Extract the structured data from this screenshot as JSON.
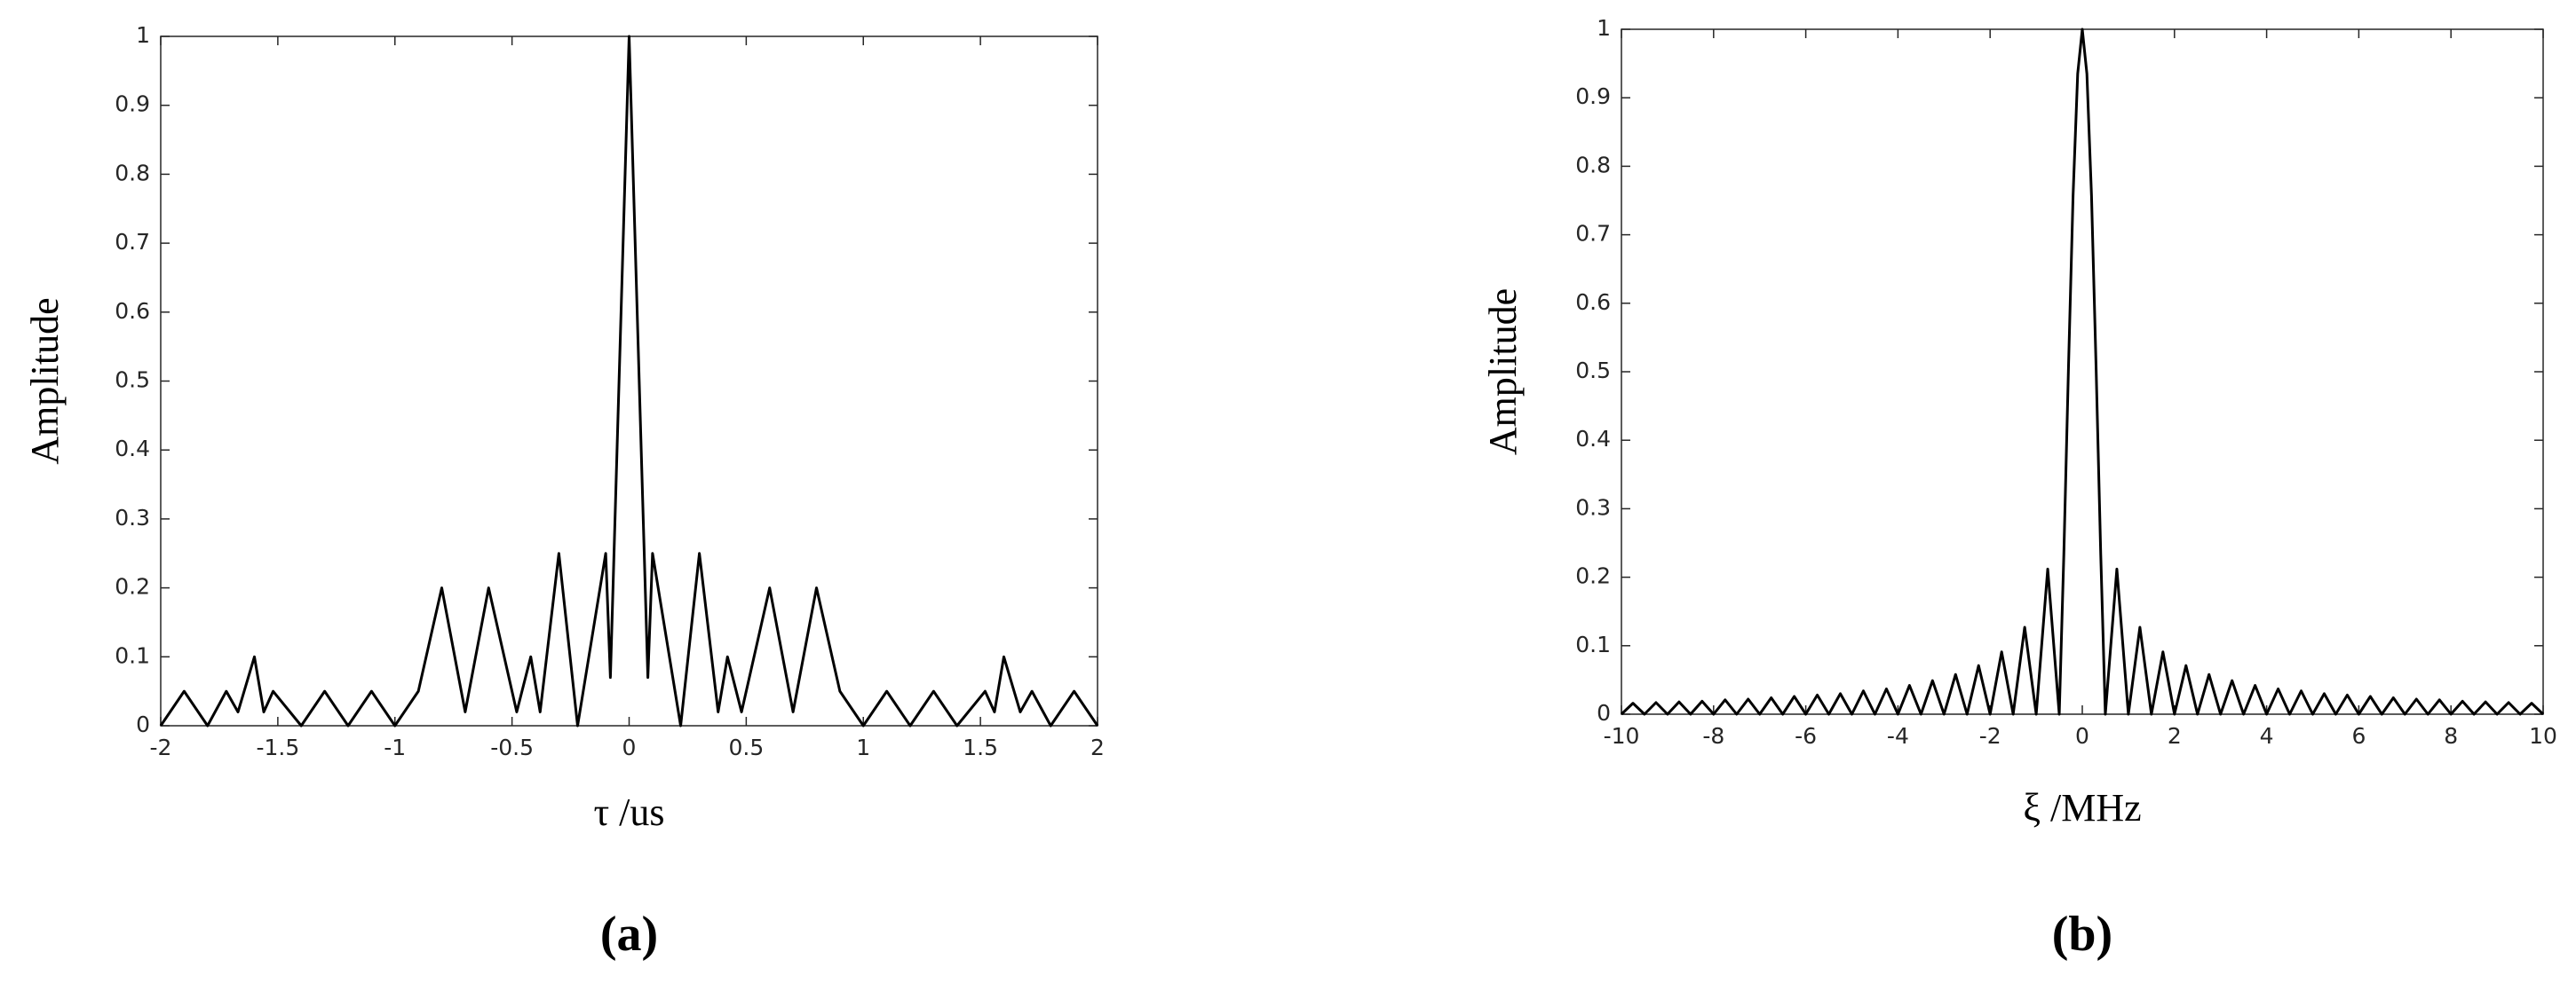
{
  "chart_data": [
    {
      "type": "line",
      "label": "(a)",
      "x_label": "τ /us",
      "y_label": "Amplitude",
      "color": "#000000",
      "xlim": [
        -2,
        2
      ],
      "ylim": [
        0,
        1
      ],
      "xticks": [
        -2,
        -1.5,
        -1,
        -0.5,
        0,
        0.5,
        1,
        1.5,
        2
      ],
      "yticks": [
        0,
        0.1,
        0.2,
        0.3,
        0.4,
        0.5,
        0.6,
        0.7,
        0.8,
        0.9,
        1
      ],
      "x": [
        -2,
        -1.9,
        -1.8,
        -1.72,
        -1.67,
        -1.6,
        -1.56,
        -1.52,
        -1.4,
        -1.3,
        -1.2,
        -1.1,
        -1,
        -0.9,
        -0.8,
        -0.7,
        -0.6,
        -0.48,
        -0.42,
        -0.38,
        -0.3,
        -0.22,
        -0.1,
        -0.08,
        0,
        0.08,
        0.1,
        0.22,
        0.3,
        0.38,
        0.42,
        0.48,
        0.6,
        0.7,
        0.8,
        0.9,
        1,
        1.1,
        1.2,
        1.3,
        1.4,
        1.52,
        1.56,
        1.6,
        1.67,
        1.72,
        1.8,
        1.9,
        2
      ],
      "values": [
        0,
        0.05,
        0,
        0.05,
        0.02,
        0.1,
        0.02,
        0.05,
        0,
        0.05,
        0,
        0.05,
        0,
        0.05,
        0.2,
        0.02,
        0.2,
        0.02,
        0.1,
        0.02,
        0.25,
        0,
        0.25,
        0.07,
        1,
        0.07,
        0.25,
        0,
        0.25,
        0.02,
        0.1,
        0.02,
        0.2,
        0.02,
        0.2,
        0.05,
        0,
        0.05,
        0,
        0.05,
        0,
        0.05,
        0.02,
        0.1,
        0.02,
        0.05,
        0,
        0.05,
        0
      ]
    },
    {
      "type": "line",
      "label": "(b)",
      "x_label": "ξ /MHz",
      "y_label": "Amplitude",
      "color": "#000000",
      "xlim": [
        -10,
        10
      ],
      "ylim": [
        0,
        1
      ],
      "xticks": [
        -10,
        -8,
        -6,
        -4,
        -2,
        0,
        2,
        4,
        6,
        8,
        10
      ],
      "yticks": [
        0,
        0.1,
        0.2,
        0.3,
        0.4,
        0.5,
        0.6,
        0.7,
        0.8,
        0.9,
        1
      ],
      "x": [
        -10,
        -9.75,
        -9.5,
        -9.25,
        -9,
        -8.75,
        -8.5,
        -8.25,
        -8,
        -7.75,
        -7.5,
        -7.25,
        -7,
        -6.75,
        -6.5,
        -6.25,
        -6,
        -5.75,
        -5.5,
        -5.25,
        -5,
        -4.75,
        -4.5,
        -4.25,
        -4,
        -3.75,
        -3.5,
        -3.25,
        -3,
        -2.75,
        -2.5,
        -2.25,
        -2,
        -1.75,
        -1.5,
        -1.25,
        -1,
        -0.75,
        -0.5,
        -0.4,
        -0.3,
        -0.2,
        -0.1,
        0,
        0.1,
        0.2,
        0.3,
        0.4,
        0.5,
        0.75,
        1,
        1.25,
        1.5,
        1.75,
        2,
        2.25,
        2.5,
        2.75,
        3,
        3.25,
        3.5,
        3.75,
        4,
        4.25,
        4.5,
        4.75,
        5,
        5.25,
        5.5,
        5.75,
        6,
        6.25,
        6.5,
        6.75,
        7,
        7.25,
        7.5,
        7.75,
        8,
        8.25,
        8.5,
        8.75,
        9,
        9.25,
        9.5,
        9.75,
        10
      ],
      "values": [
        0,
        0.016,
        0,
        0.017,
        0,
        0.018,
        0,
        0.019,
        0,
        0.021,
        0,
        0.022,
        0,
        0.024,
        0,
        0.026,
        0,
        0.028,
        0,
        0.03,
        0,
        0.034,
        0,
        0.037,
        0,
        0.042,
        0,
        0.049,
        0,
        0.058,
        0,
        0.071,
        0,
        0.091,
        0,
        0.127,
        0,
        0.212,
        0,
        0.234,
        0.505,
        0.757,
        0.935,
        1,
        0.935,
        0.757,
        0.505,
        0.234,
        0,
        0.212,
        0,
        0.127,
        0,
        0.091,
        0,
        0.071,
        0,
        0.058,
        0,
        0.049,
        0,
        0.042,
        0,
        0.037,
        0,
        0.034,
        0,
        0.03,
        0,
        0.028,
        0,
        0.026,
        0,
        0.024,
        0,
        0.022,
        0,
        0.021,
        0,
        0.019,
        0,
        0.018,
        0,
        0.017,
        0,
        0.016,
        0
      ]
    }
  ]
}
